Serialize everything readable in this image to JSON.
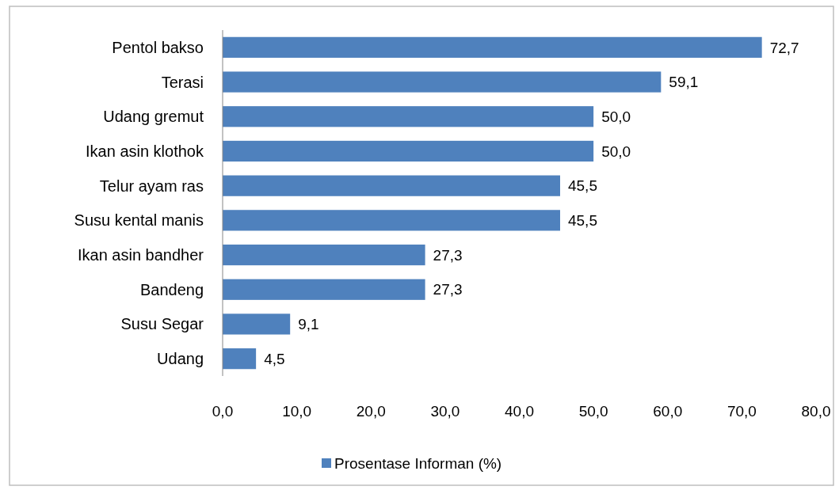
{
  "chart_data": {
    "type": "bar",
    "orientation": "horizontal",
    "categories": [
      "Pentol bakso",
      "Terasi",
      "Udang gremut",
      "Ikan asin klothok",
      "Telur ayam ras",
      "Susu kental manis",
      "Ikan asin bandher",
      "Bandeng",
      "Susu Segar",
      "Udang"
    ],
    "series": [
      {
        "name": "Prosentase Informan (%)",
        "color": "#4f81bd",
        "values": [
          72.7,
          59.1,
          50.0,
          50.0,
          45.5,
          45.5,
          27.3,
          27.3,
          9.1,
          4.5
        ],
        "value_labels": [
          "72,7",
          "59,1",
          "50,0",
          "50,0",
          "45,5",
          "45,5",
          "27,3",
          "27,3",
          "9,1",
          "4,5"
        ]
      }
    ],
    "xlim": [
      0,
      80
    ],
    "xticks": [
      {
        "value": 0,
        "label": "0,0"
      },
      {
        "value": 10,
        "label": "10,0"
      },
      {
        "value": 20,
        "label": "20,0"
      },
      {
        "value": 30,
        "label": "30,0"
      },
      {
        "value": 40,
        "label": "40,0"
      },
      {
        "value": 50,
        "label": "50,0"
      },
      {
        "value": 60,
        "label": "60,0"
      },
      {
        "value": 70,
        "label": "70,0"
      },
      {
        "value": 80,
        "label": "80,0"
      }
    ],
    "legend": "bottom"
  }
}
